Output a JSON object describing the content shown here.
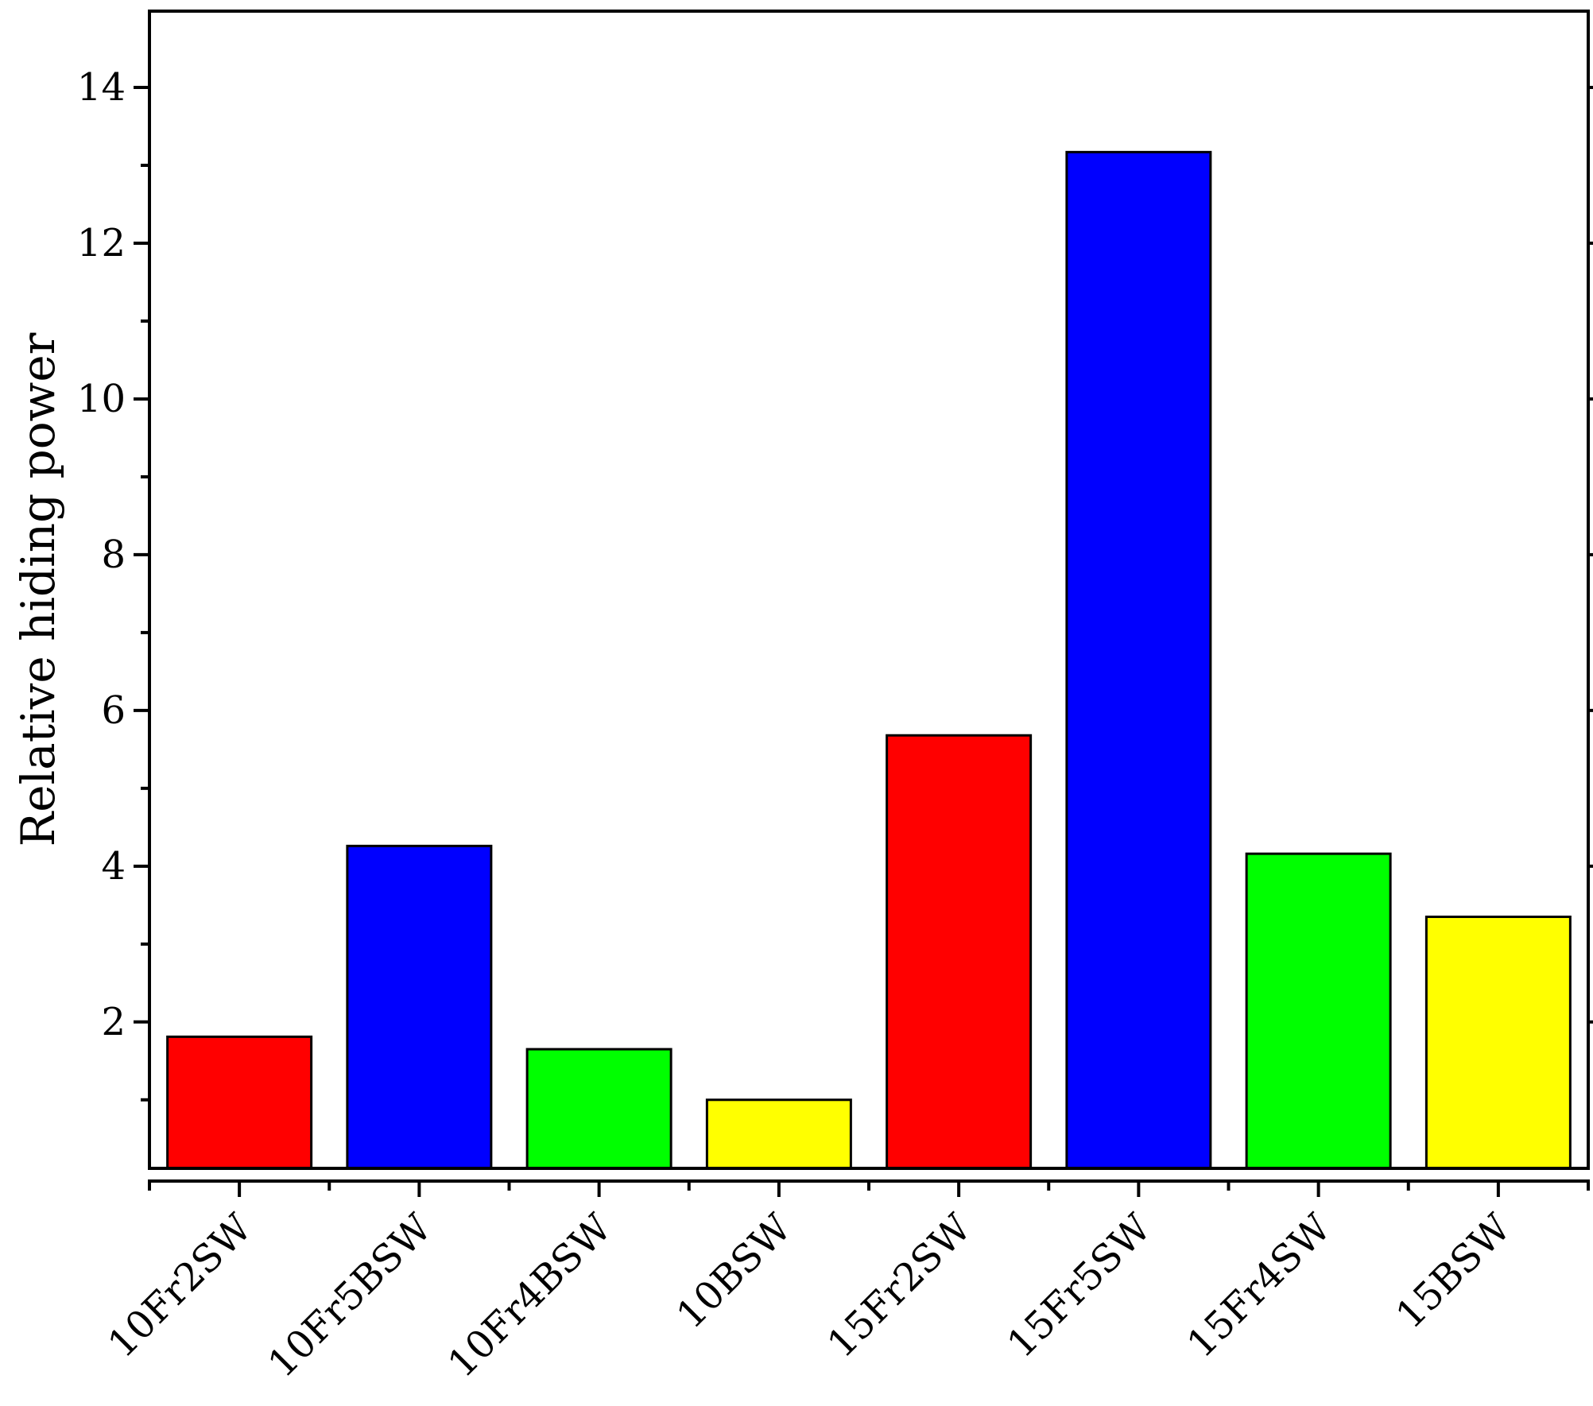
{
  "chart_data": {
    "type": "bar",
    "title": "",
    "xlabel": "",
    "ylabel": "Relative hiding power",
    "categories": [
      "10Fr2SW",
      "10Fr5BSW",
      "10Fr4BSW",
      "10BSW",
      "15Fr2SW",
      "15Fr5SW",
      "15Fr4SW",
      "15BSW"
    ],
    "values": [
      1.81,
      4.26,
      1.65,
      1.0,
      5.68,
      13.17,
      4.16,
      3.35
    ],
    "colors": [
      "#ff0000",
      "#0000ff",
      "#00ff00",
      "#ffff00",
      "#ff0000",
      "#0000ff",
      "#00ff00",
      "#ffff00"
    ],
    "ylim": [
      0.12,
      14.98
    ],
    "yticks": [
      2,
      4,
      6,
      8,
      10,
      12,
      14
    ],
    "y_minor_ticks": [
      1,
      3,
      5,
      7,
      9,
      11,
      13
    ],
    "legend": "none",
    "grid": false
  }
}
